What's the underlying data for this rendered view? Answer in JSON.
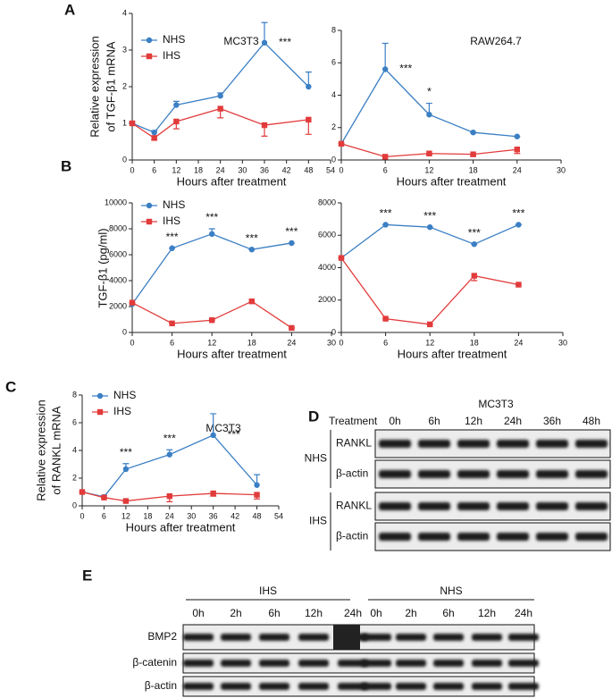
{
  "panel_labels": [
    "A",
    "B",
    "C",
    "D",
    "E"
  ],
  "chart_data": [
    {
      "type": "line",
      "title": "MC3T3",
      "xlabel": "Hours after treatment",
      "ylabel": [
        "Relative expression",
        "of TGF-β1 mRNA"
      ],
      "x": [
        0,
        6,
        12,
        24,
        36,
        48
      ],
      "xlim": [
        0,
        54
      ],
      "xticks": [
        0,
        6,
        12,
        18,
        24,
        30,
        36,
        42,
        48,
        54
      ],
      "ylim": [
        0,
        4
      ],
      "yticks": [
        0,
        1,
        2,
        3,
        4
      ],
      "legend": "upper left",
      "series": [
        {
          "name": "NHS",
          "color": "#3b7fc4",
          "values": [
            1,
            0.75,
            1.5,
            1.75,
            3.2,
            2.0
          ],
          "errors": [
            0,
            0.05,
            0.1,
            0.08,
            0.55,
            0.4
          ]
        },
        {
          "name": "IHS",
          "color": "#e23b3b",
          "values": [
            1,
            0.6,
            1.05,
            1.4,
            0.95,
            1.1
          ],
          "errors": [
            0.05,
            0.05,
            0.2,
            0.25,
            0.3,
            0.4
          ]
        }
      ],
      "annotations": [
        {
          "x": 36,
          "text": "***"
        }
      ]
    },
    {
      "type": "line",
      "title": "RAW264.7",
      "xlabel": "Hours after treatment",
      "x": [
        0,
        6,
        12,
        18,
        24
      ],
      "xlim": [
        0,
        30
      ],
      "xticks": [
        0,
        6,
        12,
        18,
        24,
        30
      ],
      "ylim": [
        0,
        8
      ],
      "yticks": [
        0,
        2,
        4,
        6,
        8
      ],
      "series": [
        {
          "name": "NHS",
          "color": "#3b7fc4",
          "values": [
            1,
            5.6,
            2.8,
            1.7,
            1.45
          ],
          "errors": [
            0,
            1.6,
            0.7,
            0,
            0
          ]
        },
        {
          "name": "IHS",
          "color": "#e23b3b",
          "values": [
            1,
            0.2,
            0.4,
            0.35,
            0.65
          ],
          "errors": [
            0,
            0,
            0.1,
            0.1,
            0.25
          ]
        }
      ],
      "annotations": [
        {
          "x": 6,
          "text": "***"
        },
        {
          "x": 12,
          "text": "*"
        }
      ]
    },
    {
      "type": "line",
      "xlabel": "Hours after treatment",
      "ylabel": [
        "TGF-β1 (pg/ml)"
      ],
      "x": [
        0,
        6,
        12,
        18,
        24
      ],
      "xlim": [
        0,
        30
      ],
      "xticks": [
        0,
        6,
        12,
        18,
        24,
        30
      ],
      "ylim": [
        0,
        10000
      ],
      "yticks": [
        0,
        2000,
        4000,
        6000,
        8000,
        10000
      ],
      "legend": "upper left",
      "series": [
        {
          "name": "NHS",
          "color": "#3b7fc4",
          "values": [
            2200,
            6500,
            7600,
            6400,
            6900
          ],
          "errors": [
            0,
            0,
            400,
            0,
            0
          ]
        },
        {
          "name": "IHS",
          "color": "#e23b3b",
          "values": [
            2300,
            700,
            950,
            2400,
            350
          ],
          "errors": [
            0,
            0,
            0,
            100,
            0
          ]
        }
      ],
      "annotations": [
        {
          "x": 6,
          "text": "***"
        },
        {
          "x": 12,
          "text": "***"
        },
        {
          "x": 18,
          "text": "***"
        },
        {
          "x": 24,
          "text": "***"
        }
      ]
    },
    {
      "type": "line",
      "xlabel": "Hours after treatment",
      "x": [
        0,
        6,
        12,
        18,
        24
      ],
      "xlim": [
        0,
        30
      ],
      "xticks": [
        0,
        6,
        12,
        18,
        24,
        30
      ],
      "ylim": [
        0,
        8000
      ],
      "yticks": [
        0,
        2000,
        4000,
        6000,
        8000
      ],
      "series": [
        {
          "name": "NHS",
          "color": "#3b7fc4",
          "values": [
            4600,
            6650,
            6500,
            5450,
            6650
          ],
          "errors": [
            0,
            0,
            0,
            0,
            0
          ]
        },
        {
          "name": "IHS",
          "color": "#e23b3b",
          "values": [
            4600,
            850,
            500,
            3500,
            2950
          ],
          "errors": [
            0,
            0,
            0,
            300,
            0
          ]
        }
      ],
      "annotations": [
        {
          "x": 6,
          "text": "***"
        },
        {
          "x": 12,
          "text": "***"
        },
        {
          "x": 18,
          "text": "***"
        },
        {
          "x": 24,
          "text": "***"
        }
      ]
    },
    {
      "type": "line",
      "title": "MC3T3",
      "xlabel": "Hours after treatment",
      "ylabel": [
        "Relative expression",
        "of RANKL mRNA"
      ],
      "x": [
        0,
        6,
        12,
        24,
        36,
        48
      ],
      "xlim": [
        0,
        54
      ],
      "xticks": [
        0,
        6,
        12,
        18,
        24,
        30,
        36,
        42,
        48,
        54
      ],
      "ylim": [
        0,
        8
      ],
      "yticks": [
        0,
        2,
        4,
        6,
        8
      ],
      "legend": "upper left",
      "series": [
        {
          "name": "NHS",
          "color": "#3b7fc4",
          "values": [
            1,
            0.65,
            2.65,
            3.7,
            5.1,
            1.5
          ],
          "errors": [
            0,
            0.1,
            0.4,
            0.35,
            1.55,
            0.75
          ]
        },
        {
          "name": "IHS",
          "color": "#e23b3b",
          "values": [
            1,
            0.6,
            0.35,
            0.7,
            0.9,
            0.8
          ],
          "errors": [
            0,
            0,
            0,
            0.4,
            0.2,
            0.3
          ]
        }
      ],
      "annotations": [
        {
          "x": 12,
          "text": "***"
        },
        {
          "x": 24,
          "text": "***"
        },
        {
          "x": 36,
          "text": "***"
        }
      ]
    }
  ],
  "blots": {
    "D": {
      "title": "MC3T3",
      "row_header": "Treatment",
      "lanes": [
        "0h",
        "6h",
        "12h",
        "24h",
        "36h",
        "48h"
      ],
      "groups": [
        {
          "name": "NHS",
          "rows": [
            "RANKL",
            "β-actin"
          ]
        },
        {
          "name": "IHS",
          "rows": [
            "RANKL",
            "β-actin"
          ]
        }
      ]
    },
    "E": {
      "groups": [
        {
          "name": "IHS",
          "lanes": [
            "0h",
            "2h",
            "6h",
            "12h",
            "24h"
          ]
        },
        {
          "name": "NHS",
          "lanes": [
            "0h",
            "2h",
            "6h",
            "12h",
            "24h"
          ]
        }
      ],
      "rows": [
        "BMP2",
        "β-catenin",
        "β-actin"
      ]
    }
  }
}
